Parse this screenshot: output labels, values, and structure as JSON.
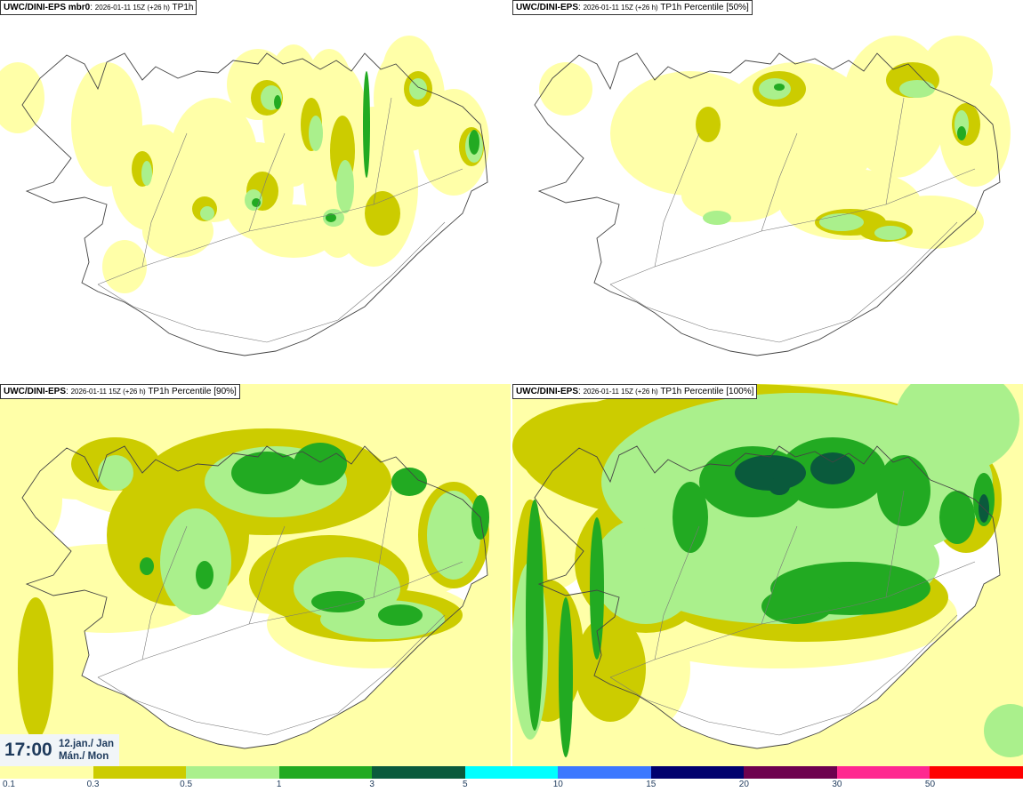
{
  "panels": [
    {
      "model": "UWC/DINI-EPS mbr0",
      "run": "2026-01-11 15Z (+26 h)",
      "field": "TP1h",
      "level": 1
    },
    {
      "model": "UWC/DINI-EPS",
      "run": "2026-01-11 15Z (+26 h)",
      "field": "TP1h Percentile [50%]",
      "level": 1
    },
    {
      "model": "UWC/DINI-EPS",
      "run": "2026-01-11 15Z (+26 h)",
      "field": "TP1h Percentile [90%]",
      "level": 2
    },
    {
      "model": "UWC/DINI-EPS",
      "run": "2026-01-11 15Z (+26 h)",
      "field": "TP1h Percentile [100%]",
      "level": 3
    }
  ],
  "valid_time": {
    "time": "17:00",
    "date_line1": "12.jan./ Jan",
    "date_line2": "Mán./ Mon"
  },
  "colorbar": {
    "labels": [
      "0.1",
      "0.3",
      "0.5",
      "1",
      "3",
      "5",
      "10",
      "15",
      "20",
      "30",
      "50"
    ],
    "colors": [
      "#ffffa8",
      "#cccc00",
      "#aaf08c",
      "#22aa22",
      "#0a5a3c",
      "#00ffff",
      "#3c78ff",
      "#00006e",
      "#6e004e",
      "#ff2890",
      "#ff0000"
    ]
  },
  "legend_colors": {
    "light_yellow": "#ffffa8",
    "olive": "#cccc00",
    "light_green": "#aaf08c",
    "green": "#22aa22",
    "dark_green": "#0a5a3c"
  }
}
